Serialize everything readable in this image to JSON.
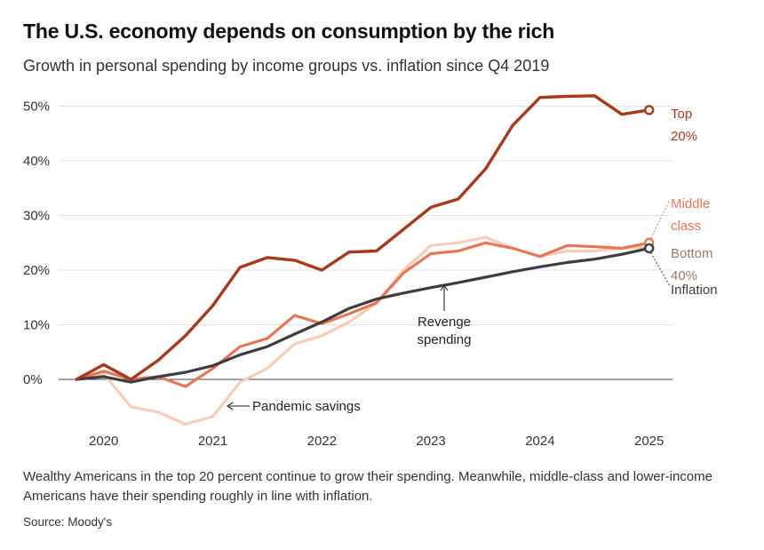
{
  "header": {
    "title": "The U.S. economy depends on consumption by the rich",
    "subtitle": "Growth in personal spending by income groups vs. inflation since Q4 2019"
  },
  "footer": {
    "note": "Wealthy Americans in the top 20 percent continue to grow their spending. Meanwhile, middle-class and lower-income Americans have their spending roughly in line with inflation.",
    "source": "Source: Moody's"
  },
  "chart_data": {
    "type": "line",
    "title": "The U.S. economy depends on consumption by the rich",
    "subtitle": "Growth in personal spending by income groups vs. inflation since Q4 2019",
    "xlabel": "",
    "ylabel": "",
    "x_ticks": [
      "2020",
      "2021",
      "2022",
      "2023",
      "2024",
      "2025"
    ],
    "x": [
      "2019 Q4",
      "2020 Q1",
      "2020 Q2",
      "2020 Q3",
      "2020 Q4",
      "2021 Q1",
      "2021 Q2",
      "2021 Q3",
      "2021 Q4",
      "2022 Q1",
      "2022 Q2",
      "2022 Q3",
      "2022 Q4",
      "2023 Q1",
      "2023 Q2",
      "2023 Q3",
      "2023 Q4",
      "2024 Q1",
      "2024 Q2",
      "2024 Q3",
      "2024 Q4",
      "2025 Q1"
    ],
    "y_ticks": [
      "0%",
      "10%",
      "20%",
      "30%",
      "40%",
      "50%"
    ],
    "ylim": [
      -8,
      53
    ],
    "grid": true,
    "series": [
      {
        "name": "Bottom 40%",
        "label_lines": [
          "Bottom",
          "40%"
        ],
        "color": "#f6cdb7",
        "values": [
          0,
          1.0,
          -5.0,
          -6.0,
          -8.2,
          -6.8,
          -0.5,
          2.0,
          6.5,
          8.0,
          10.5,
          14.0,
          20.0,
          24.5,
          25.0,
          26.0,
          24.0,
          22.5,
          23.5,
          23.5,
          24.0,
          24.2
        ]
      },
      {
        "name": "Middle class",
        "label_lines": [
          "Middle",
          "class"
        ],
        "color": "#e57758",
        "values": [
          0,
          1.5,
          0.0,
          0.5,
          -1.3,
          2.0,
          6.0,
          7.5,
          11.7,
          10.2,
          12.0,
          14.0,
          19.5,
          23.0,
          23.5,
          25.0,
          24.0,
          22.5,
          24.5,
          24.3,
          24.0,
          25.0
        ]
      },
      {
        "name": "Inflation",
        "label_lines": [
          "Inflation"
        ],
        "color": "#3d3d3d",
        "values": [
          0,
          0.5,
          -0.5,
          0.5,
          1.3,
          2.5,
          4.5,
          6.0,
          8.3,
          10.5,
          13.0,
          14.7,
          15.8,
          16.8,
          17.7,
          18.7,
          19.7,
          20.6,
          21.4,
          22.0,
          22.9,
          24.0
        ]
      },
      {
        "name": "Top 20%",
        "label_lines": [
          "Top",
          "20%"
        ],
        "color": "#a63a1c",
        "values": [
          0,
          2.7,
          0.0,
          3.5,
          8.0,
          13.5,
          20.5,
          22.3,
          21.8,
          20.0,
          23.3,
          23.5,
          27.5,
          31.5,
          33.0,
          38.5,
          46.5,
          51.6,
          51.8,
          51.9,
          48.5,
          49.3
        ]
      }
    ],
    "annotations": [
      {
        "text": "Pandemic savings"
      },
      {
        "text_lines": [
          "Revenge",
          "spending"
        ]
      }
    ]
  }
}
